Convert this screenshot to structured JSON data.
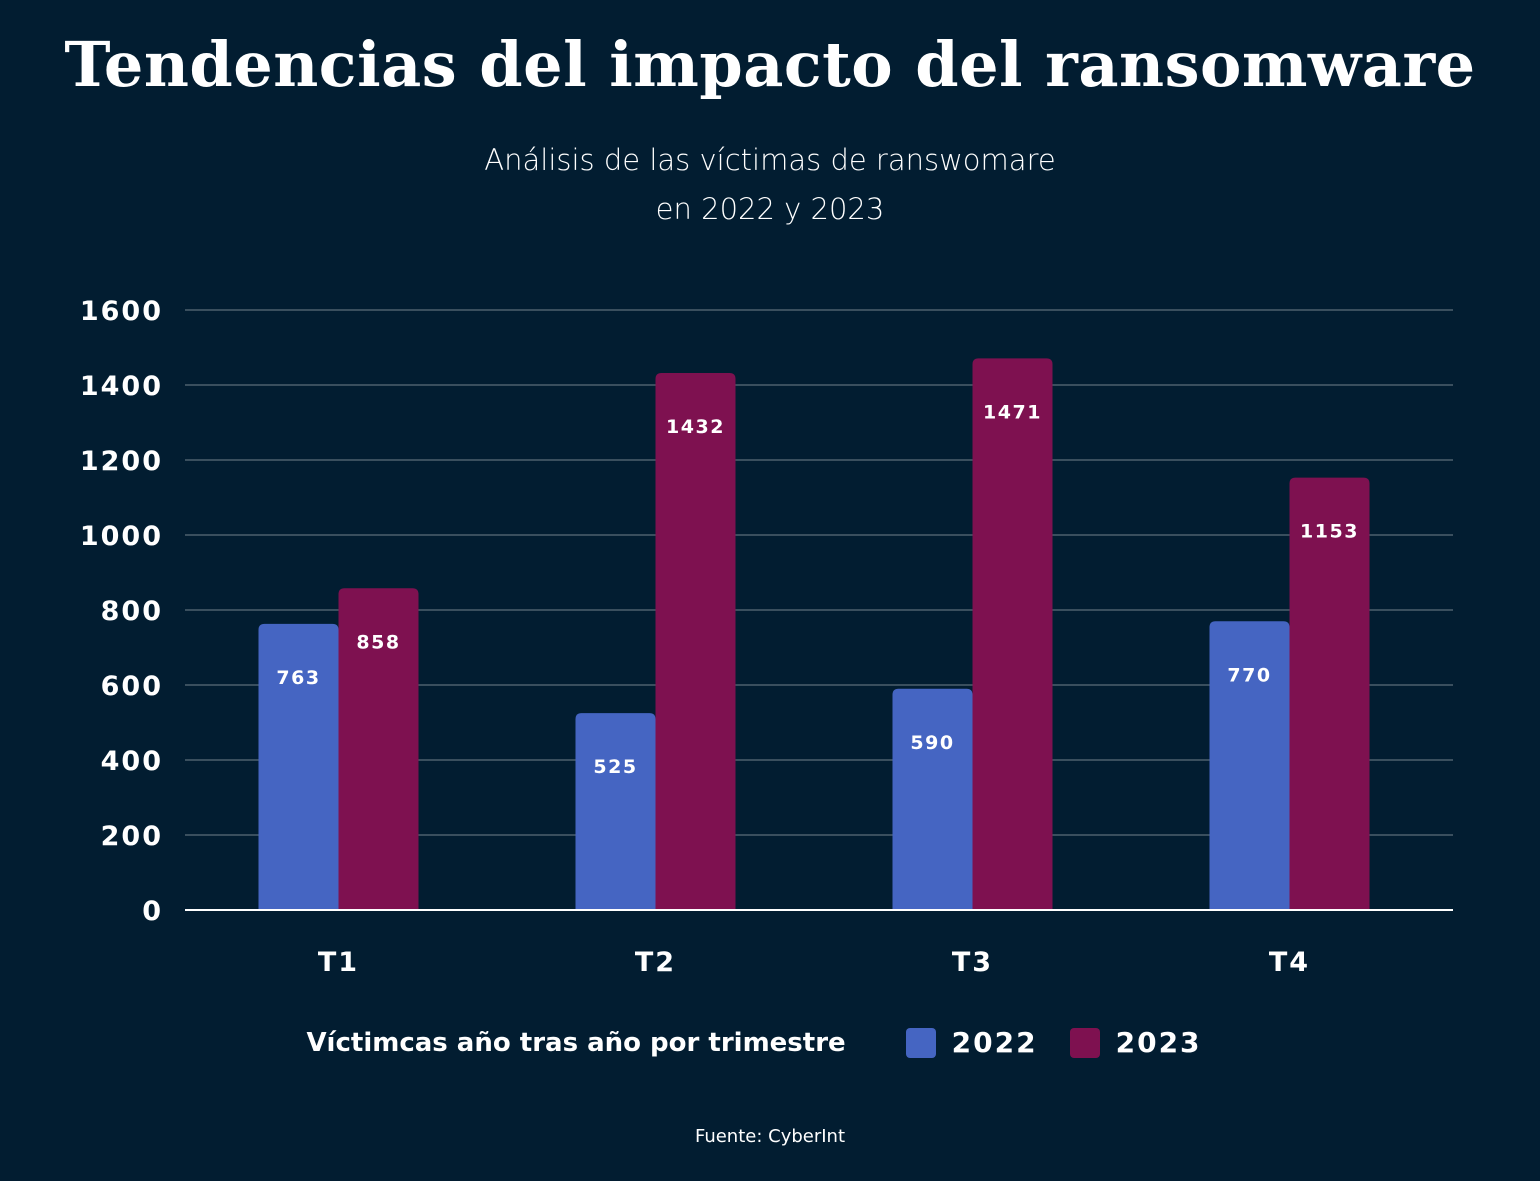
{
  "title": "Tendencias del impacto del ransomware",
  "subtitle_line1": "Análisis de las víctimas de ranswomare",
  "subtitle_line2": "en 2022 y 2023",
  "source": "Fuente: CyberInt",
  "colors": {
    "background": "#021d31",
    "2022": "#4565c2",
    "2023": "#7e1150",
    "grid": "#3a4f5e"
  },
  "chart_data": {
    "type": "bar",
    "categories": [
      "T1",
      "T2",
      "T3",
      "T4"
    ],
    "series": [
      {
        "name": "2022",
        "values": [
          763,
          525,
          590,
          770
        ]
      },
      {
        "name": "2023",
        "values": [
          858,
          1432,
          1471,
          1153
        ]
      }
    ],
    "legend_title": "Víctimcas año tras año por trimestre",
    "legend_position": "bottom",
    "ylim": [
      0,
      1600
    ],
    "yticks": [
      0,
      200,
      400,
      600,
      800,
      1000,
      1200,
      1400,
      1600
    ],
    "grid": true,
    "data_labels": true
  }
}
